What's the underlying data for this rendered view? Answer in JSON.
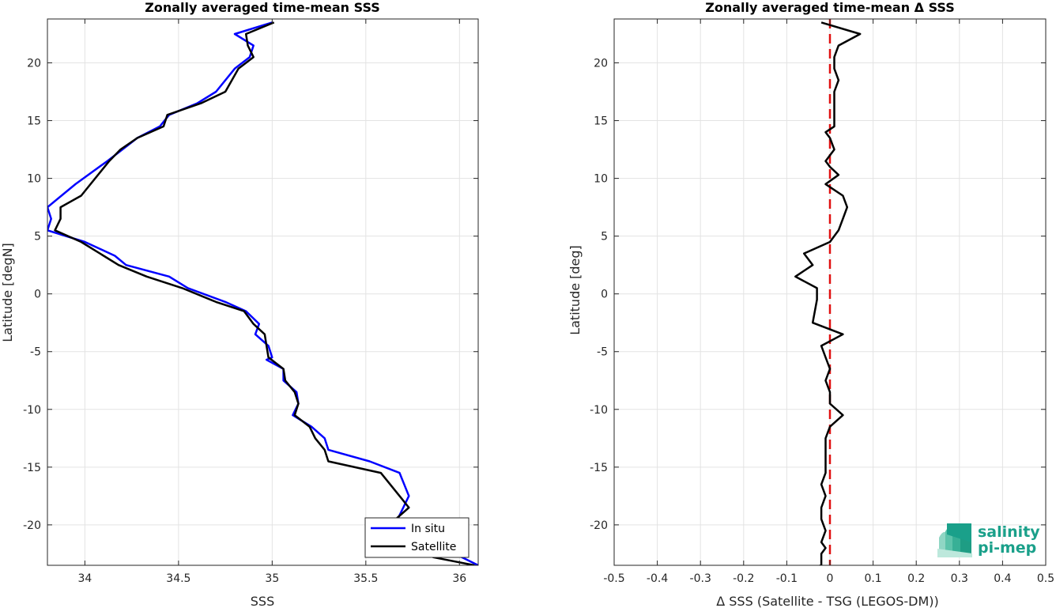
{
  "chart_data": [
    {
      "type": "line",
      "title": "Zonally averaged time-mean SSS",
      "xlabel": "SSS",
      "ylabel": "Latitude [degN]",
      "xlim": [
        33.8,
        36.1
      ],
      "ylim": [
        -23.5,
        23.8
      ],
      "xticks": [
        "34",
        "34.5",
        "35",
        "35.5",
        "36"
      ],
      "yticks": [
        "20",
        "15",
        "10",
        "5",
        "0",
        "-5",
        "-10",
        "-15",
        "-20"
      ],
      "grid": true,
      "legend_position": "bottom-right",
      "series": [
        {
          "name": "In situ",
          "color": "#0000ff",
          "x": [
            35.0,
            34.8,
            34.9,
            34.88,
            34.8,
            34.7,
            34.6,
            34.45,
            34.4,
            34.28,
            34.2,
            34.12,
            33.95,
            33.8,
            33.82,
            33.8,
            34.0,
            34.16,
            34.22,
            34.45,
            34.55,
            34.75,
            34.86,
            34.93,
            34.91,
            34.98,
            35.0,
            34.97,
            35.06,
            35.06,
            35.13,
            35.14,
            35.11,
            35.21,
            35.28,
            35.3,
            35.52,
            35.68,
            35.73,
            35.7,
            35.67,
            35.85,
            36.1
          ],
          "y": [
            23.5,
            22.5,
            21.5,
            20.5,
            19.5,
            17.5,
            16.5,
            15.5,
            14.5,
            13.5,
            12.5,
            11.5,
            9.5,
            7.5,
            6.5,
            5.5,
            4.5,
            3.3,
            2.5,
            1.5,
            0.5,
            -0.7,
            -1.5,
            -2.6,
            -3.5,
            -4.5,
            -5.5,
            -5.7,
            -6.5,
            -7.5,
            -8.5,
            -9.5,
            -10.5,
            -11.5,
            -12.5,
            -13.5,
            -14.5,
            -15.5,
            -17.5,
            -18.5,
            -19.5,
            -21.5,
            -23.5
          ]
        },
        {
          "name": "Satellite",
          "color": "#000000",
          "x": [
            35.01,
            34.86,
            34.87,
            34.9,
            34.82,
            34.75,
            34.62,
            34.44,
            34.42,
            34.28,
            34.19,
            34.13,
            33.98,
            33.87,
            33.87,
            33.84,
            33.98,
            34.1,
            34.18,
            34.33,
            34.52,
            34.7,
            34.85,
            34.9,
            34.96,
            34.97,
            34.98,
            35.06,
            35.07,
            35.12,
            35.14,
            35.12,
            35.2,
            35.23,
            35.28,
            35.3,
            35.58,
            35.68,
            35.73,
            35.66,
            35.7,
            35.86,
            36.08
          ],
          "y": [
            23.5,
            22.5,
            21.5,
            20.5,
            19.5,
            17.5,
            16.5,
            15.5,
            14.5,
            13.5,
            12.5,
            11.5,
            8.5,
            7.5,
            6.5,
            5.5,
            4.5,
            3.3,
            2.5,
            1.5,
            0.5,
            -0.7,
            -1.5,
            -2.6,
            -3.5,
            -4.5,
            -5.5,
            -6.5,
            -7.5,
            -8.5,
            -9.5,
            -10.5,
            -11.5,
            -12.5,
            -13.5,
            -14.5,
            -15.5,
            -17.5,
            -18.5,
            -19.5,
            -21.5,
            -22.8,
            -23.5
          ]
        }
      ]
    },
    {
      "type": "line",
      "title": "Zonally averaged time-mean Δ SSS",
      "xlabel": "Δ SSS (Satellite - TSG (LEGOS-DM))",
      "ylabel": "Latitude [deg]",
      "xlim": [
        -0.5,
        0.5
      ],
      "ylim": [
        -23.5,
        23.8
      ],
      "xticks": [
        "-0.5",
        "-0.4",
        "-0.3",
        "-0.2",
        "-0.1",
        "0",
        "0.1",
        "0.2",
        "0.3",
        "0.4",
        "0.5"
      ],
      "yticks": [
        "20",
        "15",
        "10",
        "5",
        "0",
        "-5",
        "-10",
        "-15",
        "-20"
      ],
      "grid": true,
      "reference_line": {
        "x": 0,
        "style": "dashed",
        "color": "#e01010"
      },
      "series": [
        {
          "color": "#000000",
          "x": [
            -0.02,
            0.07,
            0.02,
            0.01,
            0.01,
            0.02,
            0.01,
            0.01,
            0.01,
            0.01,
            -0.01,
            0.0,
            0.01,
            -0.01,
            0.0,
            0.02,
            -0.01,
            0.03,
            0.04,
            0.03,
            0.02,
            0.0,
            -0.06,
            -0.04,
            -0.06,
            -0.08,
            -0.03,
            -0.03,
            -0.04,
            0.03,
            -0.02,
            -0.01,
            0.0,
            -0.01,
            0.0,
            0.0,
            0.03,
            0.0,
            -0.01,
            -0.01,
            -0.01,
            -0.01,
            -0.02,
            -0.01,
            -0.02,
            -0.02,
            -0.01,
            -0.02,
            -0.01,
            -0.02,
            -0.02,
            -0.02,
            -0.05
          ],
          "y": [
            23.5,
            22.5,
            21.5,
            20.5,
            19.5,
            18.5,
            17.5,
            16.5,
            15.5,
            14.5,
            14.0,
            13.5,
            12.5,
            11.5,
            11.0,
            10.3,
            9.5,
            8.5,
            7.5,
            6.5,
            5.5,
            4.5,
            3.5,
            2.5,
            2.0,
            1.5,
            0.5,
            -0.5,
            -2.5,
            -3.5,
            -4.5,
            -5.5,
            -6.5,
            -7.5,
            -8.5,
            -9.5,
            -10.5,
            -11.5,
            -12.5,
            -13.5,
            -14.5,
            -15.5,
            -16.5,
            -17.5,
            -18.5,
            -19.5,
            -20.5,
            -21.5,
            -22.0,
            -22.5,
            -23.0,
            -23.5,
            -23.8
          ]
        }
      ]
    }
  ],
  "logo": {
    "line1": "salinity",
    "line2": "pi-mep",
    "color": "#1aa08a"
  }
}
